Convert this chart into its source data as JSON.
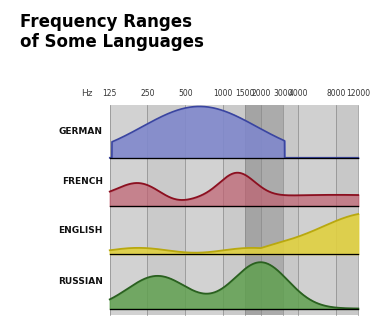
{
  "title_line1": "Frequency Ranges",
  "title_line2": "of Some Languages",
  "hz_label": "Hz",
  "freq_ticks": [
    125,
    250,
    500,
    1000,
    1500,
    2000,
    3000,
    4000,
    8000,
    12000
  ],
  "languages": [
    "GERMAN",
    "FRENCH",
    "ENGLISH",
    "RUSSIAN"
  ],
  "german_fill": "#8088cc",
  "german_line": "#3a45a0",
  "french_fill": "#c06070",
  "french_line": "#8b1020",
  "english_fill": "#e0d040",
  "english_line": "#b8a810",
  "russian_fill": "#60a050",
  "russian_line": "#2a6020",
  "bg_light": "#d4d4d4",
  "bg_medium": "#c0c0c0",
  "bg_dark": "#a8a8a8",
  "col_scheme": [
    "#d0d0d0",
    "#c8c8c8",
    "#d0d0d0",
    "#c8c8c8",
    "#b0b0b0",
    "#b8b8b8",
    "#c0c0c0",
    "#cccccc",
    "#c4c4c4"
  ]
}
